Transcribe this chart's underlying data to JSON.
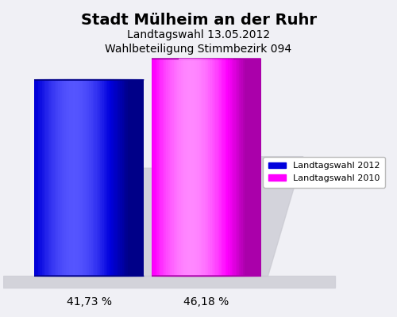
{
  "title": "Stadt Mülheim an der Ruhr",
  "subtitle1": "Landtagswahl 13.05.2012",
  "subtitle2": "Wahlbeteiligung Stimmbezirk 094",
  "values": [
    41.73,
    46.18
  ],
  "labels": [
    "41,73 %",
    "46,18 %"
  ],
  "bar_colors_main": [
    "#0000dd",
    "#ff00ff"
  ],
  "bar_colors_dark": [
    "#000088",
    "#aa00aa"
  ],
  "bar_colors_light": [
    "#5555ff",
    "#ff88ff"
  ],
  "legend_labels": [
    "Landtagswahl 2012",
    "Landtagswahl 2010"
  ],
  "background_color": "#f0f0f5",
  "plot_bg_color": "#f0f0f5",
  "title_fontsize": 14,
  "subtitle_fontsize": 10,
  "label_fontsize": 10,
  "shadow_color": "#c8c8d0",
  "floor_color": "#d0d0d8"
}
